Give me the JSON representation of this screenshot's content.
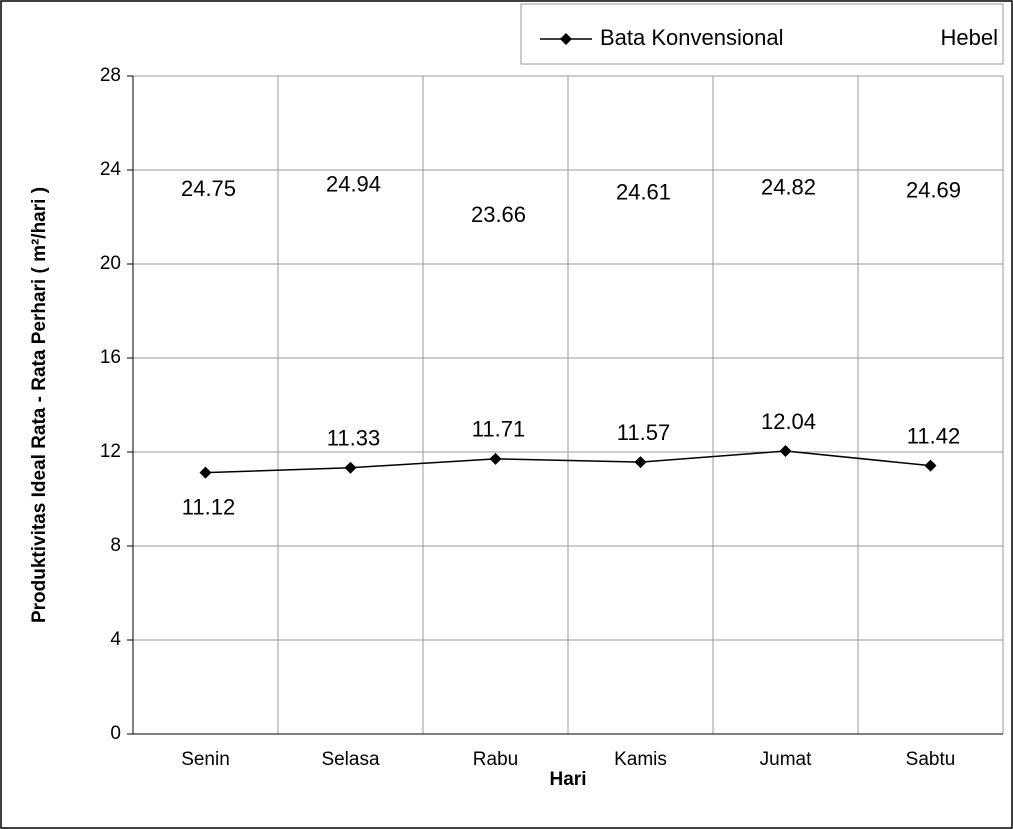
{
  "chart_data": {
    "type": "line",
    "x_label": "Hari",
    "y_label": "Produktivitas Ideal Rata - Rata Perhari ( m²/hari )",
    "categories": [
      "Senin",
      "Selasa",
      "Rabu",
      "Kamis",
      "Jumat",
      "Sabtu"
    ],
    "series": [
      {
        "name": "Bata Konvensional",
        "color": "#000000",
        "values": [
          11.12,
          11.33,
          11.71,
          11.57,
          12.04,
          11.42
        ]
      },
      {
        "name": "Hebel",
        "color": "#000000",
        "values": [
          24.75,
          24.94,
          23.66,
          24.61,
          24.82,
          24.69
        ]
      }
    ],
    "ylim": [
      0,
      28
    ],
    "yticks": [
      0,
      4,
      8,
      12,
      16,
      20,
      24,
      28
    ],
    "grid": true,
    "legend": "top-right"
  }
}
